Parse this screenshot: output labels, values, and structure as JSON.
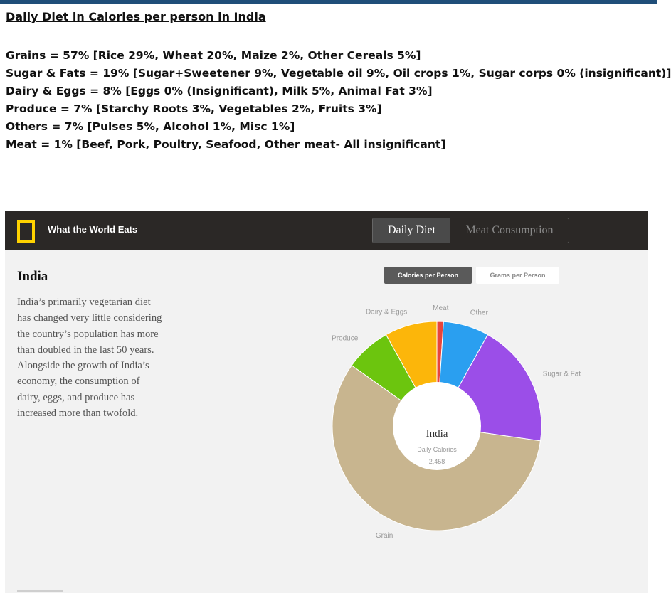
{
  "page": {
    "title": "Daily Diet in Calories per person in India",
    "summary_lines": [
      "Grains = 57% [Rice 29%, Wheat 20%, Maize 2%, Other Cereals 5%]",
      "Sugar & Fats = 19% [Sugar+Sweetener 9%, Vegetable oil 9%, Oil crops 1%, Sugar corps 0% (insignificant)]",
      "Dairy & Eggs = 8% [Eggs 0% (Insignificant), Milk 5%, Animal Fat 3%]",
      "Produce = 7% [Starchy Roots 3%, Vegetables 2%, Fruits 3%]",
      "Others = 7% [Pulses 5%, Alcohol 1%, Misc 1%]",
      "Meat = 1% [Beef, Pork, Poultry, Seafood, Other meat- All insignificant]"
    ]
  },
  "widget": {
    "app_title": "What the World Eats",
    "view_tabs": {
      "active": "Daily Diet",
      "inactive": "Meat Consumption"
    },
    "metric_toggles": {
      "active": "Calories per Person",
      "inactive": "Grams per Person"
    },
    "country": {
      "name": "India",
      "description": "India’s primarily vegetarian diet has changed very little considering the country’s population has more than doubled in the last 50 years. Alongside the growth of India’s economy, the consumption of dairy, eggs, and produce has increased more than twofold."
    },
    "colors": {
      "header_bg": "#2b2826",
      "logo_yellow": "#ffd200",
      "panel_bg": "#f2f2f2"
    }
  },
  "chart_data": {
    "type": "pie",
    "variant": "donut",
    "center": {
      "title": "India",
      "subtitle": "Daily Calories",
      "value": "2,458"
    },
    "slices": [
      {
        "label": "Meat",
        "value": 1,
        "color": "#e8453c"
      },
      {
        "label": "Other",
        "value": 7,
        "color": "#2a9ff0"
      },
      {
        "label": "Sugar & Fat",
        "value": 19,
        "color": "#9b4ee8"
      },
      {
        "label": "Grain",
        "value": 57,
        "color": "#c8b58f"
      },
      {
        "label": "Produce",
        "value": 7,
        "color": "#6cc50e"
      },
      {
        "label": "Dairy & Eggs",
        "value": 8,
        "color": "#fcb60a"
      }
    ]
  }
}
